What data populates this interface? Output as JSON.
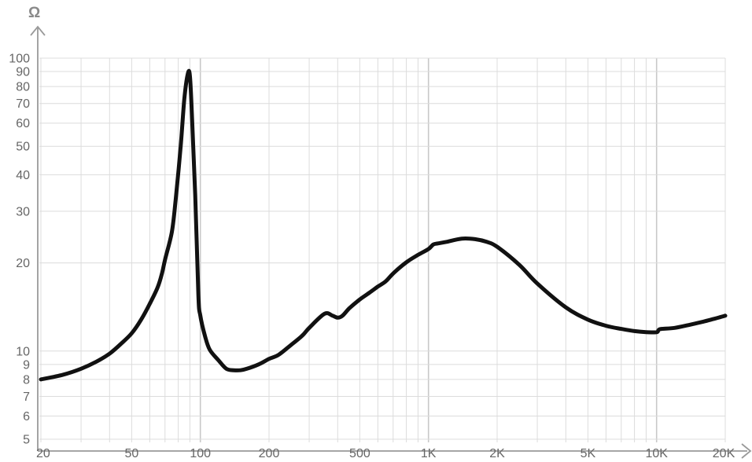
{
  "chart_data": {
    "type": "line",
    "title": "",
    "ylabel": "Ω",
    "xlabel": "",
    "x_scale": "log",
    "y_scale": "log",
    "xlim": [
      20,
      20000
    ],
    "ylim": [
      5,
      100
    ],
    "grid": true,
    "legend": "none",
    "x_ticks": [
      {
        "value": 20,
        "label": "20"
      },
      {
        "value": 50,
        "label": "50"
      },
      {
        "value": 100,
        "label": "100"
      },
      {
        "value": 200,
        "label": "200"
      },
      {
        "value": 500,
        "label": "500"
      },
      {
        "value": 1000,
        "label": "1K"
      },
      {
        "value": 2000,
        "label": "2K"
      },
      {
        "value": 5000,
        "label": "5K"
      },
      {
        "value": 10000,
        "label": "10K"
      },
      {
        "value": 20000,
        "label": "20K"
      }
    ],
    "y_ticks": [
      {
        "value": 5,
        "label": "5"
      },
      {
        "value": 6,
        "label": "6"
      },
      {
        "value": 7,
        "label": "7"
      },
      {
        "value": 8,
        "label": "8"
      },
      {
        "value": 9,
        "label": "9"
      },
      {
        "value": 10,
        "label": "10"
      },
      {
        "value": 20,
        "label": "20"
      },
      {
        "value": 30,
        "label": "30"
      },
      {
        "value": 40,
        "label": "40"
      },
      {
        "value": 50,
        "label": "50"
      },
      {
        "value": 60,
        "label": "60"
      },
      {
        "value": 70,
        "label": "70"
      },
      {
        "value": 80,
        "label": "80"
      },
      {
        "value": 90,
        "label": "90"
      },
      {
        "value": 100,
        "label": "100"
      }
    ],
    "series": [
      {
        "color": "#111111",
        "x": [
          20,
          25,
          30,
          35,
          40,
          45,
          50,
          55,
          60,
          65,
          68,
          70,
          75,
          78,
          82,
          85,
          88,
          90,
          92,
          95,
          98,
          100,
          105,
          110,
          120,
          130,
          140,
          150,
          160,
          180,
          200,
          220,
          250,
          280,
          300,
          350,
          380,
          400,
          420,
          450,
          500,
          550,
          600,
          650,
          700,
          800,
          900,
          1000,
          1050,
          1100,
          1200,
          1400,
          1600,
          1800,
          2000,
          2500,
          3000,
          4000,
          5000,
          6000,
          7000,
          8000,
          9000,
          10000,
          10200,
          10500,
          12000,
          14000,
          16000,
          18000,
          20000
        ],
        "y": [
          8.0,
          8.3,
          8.7,
          9.2,
          9.8,
          10.6,
          11.5,
          12.8,
          14.5,
          16.5,
          18.5,
          20.5,
          25.5,
          33,
          50,
          72,
          88,
          87,
          62,
          34,
          15.5,
          13.2,
          11.2,
          10.1,
          9.3,
          8.7,
          8.6,
          8.6,
          8.7,
          9.0,
          9.4,
          9.7,
          10.5,
          11.3,
          12.0,
          13.4,
          13.2,
          13.0,
          13.2,
          14.0,
          15.0,
          15.8,
          16.6,
          17.3,
          18.4,
          20.1,
          21.3,
          22.3,
          23.1,
          23.3,
          23.6,
          24.2,
          24.1,
          23.6,
          22.7,
          19.7,
          17.0,
          14.1,
          12.8,
          12.2,
          11.9,
          11.7,
          11.6,
          11.6,
          11.8,
          11.9,
          12.0,
          12.3,
          12.6,
          12.9,
          13.2
        ]
      }
    ]
  }
}
